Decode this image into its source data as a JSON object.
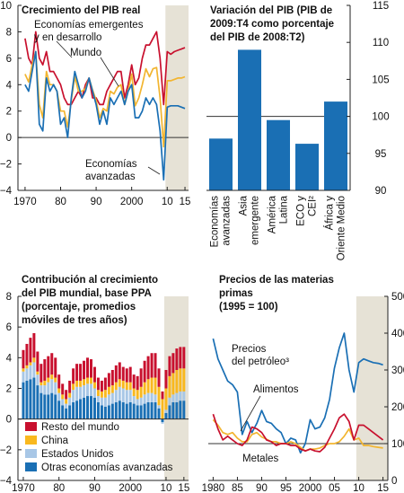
{
  "colors": {
    "em": "#c8102e",
    "world": "#f2b530",
    "adv": "#1a6fb4",
    "bar": "#1a6fb4",
    "shade": "#e6e2d6",
    "rest": "#c8102e",
    "china": "#f9b81e",
    "us": "#a8c7e6",
    "other": "#1a6fb4",
    "food": "#f2b530",
    "metals": "#c8102e",
    "oil": "#1a6fb4"
  },
  "chart_data": [
    {
      "type": "line",
      "title": [
        "Crecimiento del PIB real"
      ],
      "x": [
        1970,
        1971,
        1972,
        1973,
        1974,
        1975,
        1976,
        1977,
        1978,
        1979,
        1980,
        1981,
        1982,
        1983,
        1984,
        1985,
        1986,
        1987,
        1988,
        1989,
        1990,
        1991,
        1992,
        1993,
        1994,
        1995,
        1996,
        1997,
        1998,
        1999,
        2000,
        2001,
        2002,
        2003,
        2004,
        2005,
        2006,
        2007,
        2008,
        2009,
        2010,
        2011,
        2012,
        2013,
        2014,
        2015
      ],
      "xlim": [
        1968,
        2016
      ],
      "ylim": [
        -4,
        10
      ],
      "x_ticks": [
        1970,
        1980,
        1990,
        2000,
        2010,
        2015
      ],
      "x_tick_labels": [
        "1970",
        "80",
        "90",
        "2000",
        "10",
        "15"
      ],
      "y_ticks": [
        -4,
        -2,
        0,
        2,
        4,
        6,
        8,
        10
      ],
      "y_tick_labels": [
        "−4",
        "−2",
        "0",
        "2",
        "4",
        "6",
        "8",
        "10"
      ],
      "forecast_shade": [
        2009.5,
        2016
      ],
      "series": [
        {
          "name": "Economías emergentes y en desarrollo",
          "color_key": "em",
          "values": [
            7.5,
            6.0,
            5.5,
            8.0,
            6.0,
            5.5,
            6.5,
            5.0,
            5.0,
            4.5,
            4.0,
            3.0,
            2.5,
            2.5,
            3.0,
            3.5,
            3.0,
            4.0,
            4.5,
            3.0,
            3.0,
            2.5,
            2.5,
            3.5,
            4.0,
            4.5,
            5.0,
            5.0,
            3.0,
            4.0,
            5.5,
            4.0,
            4.5,
            6.0,
            7.0,
            7.0,
            7.5,
            8.0,
            6.0,
            2.5,
            6.5,
            6.3,
            6.5,
            6.6,
            6.7,
            6.8
          ]
        },
        {
          "name": "Mundo",
          "color_key": "world",
          "values": [
            4.8,
            4.2,
            5.5,
            6.5,
            2.5,
            1.5,
            5.0,
            4.0,
            4.0,
            3.5,
            2.0,
            2.0,
            0.8,
            2.8,
            4.6,
            3.5,
            3.5,
            3.7,
            4.5,
            3.6,
            2.8,
            1.5,
            2.2,
            2.0,
            3.5,
            3.3,
            3.8,
            4.0,
            2.5,
            3.5,
            4.8,
            2.4,
            3.0,
            4.0,
            5.2,
            4.6,
            5.2,
            5.3,
            3.0,
            -0.7,
            4.3,
            4.3,
            4.4,
            4.5,
            4.5,
            4.6
          ]
        },
        {
          "name": "Economías avanzadas",
          "color_key": "adv",
          "values": [
            4.0,
            3.5,
            5.0,
            6.5,
            1.0,
            0.5,
            4.5,
            3.5,
            4.0,
            3.5,
            1.0,
            1.5,
            0.0,
            3.0,
            5.0,
            4.0,
            3.0,
            3.5,
            4.5,
            3.5,
            2.5,
            1.0,
            2.0,
            1.0,
            3.0,
            2.5,
            3.0,
            3.5,
            2.5,
            3.5,
            4.0,
            1.5,
            1.5,
            2.0,
            3.0,
            2.5,
            3.0,
            2.5,
            0.5,
            -3.2,
            2.3,
            2.4,
            2.4,
            2.4,
            2.3,
            2.2
          ]
        }
      ],
      "annotations": [
        "Economías emergentes",
        "y en desarrollo",
        "Mundo",
        "Economías",
        "avanzadas"
      ]
    },
    {
      "type": "bar",
      "title": [
        "Variación del PIB (PIB de",
        "2009:T4 como porcentaje",
        "del PIB de 2008:T2)"
      ],
      "categories": [
        "Economías avanzadas",
        "Asia emergente",
        "América Latina",
        "ECO y CEI²",
        "África y Oriente Medio"
      ],
      "category_label_lines": [
        [
          "Economías",
          "avanzadas"
        ],
        [
          "Asia",
          "emergente"
        ],
        [
          "América",
          "Latina"
        ],
        [
          "ECO y",
          "CEI²"
        ],
        [
          "África y",
          "Oriente Medio"
        ]
      ],
      "values": [
        97.0,
        109.0,
        99.5,
        96.3,
        102.0
      ],
      "ylim": [
        90,
        115
      ],
      "baseline": 100,
      "y_ticks": [
        90,
        95,
        100,
        105,
        110,
        115
      ],
      "y_tick_labels": [
        "90",
        "95",
        "100",
        "105",
        "110",
        "115"
      ]
    },
    {
      "type": "bar",
      "stacked": true,
      "title": [
        "Contribución al crecimiento",
        "del PIB mundial, base PPA",
        "(porcentaje, promedios",
        "móviles de tres años)"
      ],
      "x": [
        1970,
        1971,
        1972,
        1973,
        1974,
        1975,
        1976,
        1977,
        1978,
        1979,
        1980,
        1981,
        1982,
        1983,
        1984,
        1985,
        1986,
        1987,
        1988,
        1989,
        1990,
        1991,
        1992,
        1993,
        1994,
        1995,
        1996,
        1997,
        1998,
        1999,
        2000,
        2001,
        2002,
        2003,
        2004,
        2005,
        2006,
        2007,
        2008,
        2009,
        2010,
        2011,
        2012,
        2013,
        2014,
        2015
      ],
      "xlim": [
        1968.5,
        2016.3
      ],
      "ylim": [
        -4,
        8
      ],
      "x_ticks": [
        1970,
        1980,
        1990,
        2000,
        2010,
        2015
      ],
      "x_tick_labels": [
        "1970",
        "80",
        "90",
        "2000",
        "10",
        "15"
      ],
      "y_ticks": [
        -4,
        -2,
        0,
        2,
        4,
        6,
        8
      ],
      "y_tick_labels": [
        "−4",
        "−2",
        "0",
        "2",
        "4",
        "6",
        "8"
      ],
      "forecast_shade": [
        2009.5,
        2016.3
      ],
      "series": [
        {
          "name": "Otras economías avanzadas",
          "color_key": "other",
          "values": [
            2.4,
            2.5,
            2.6,
            2.7,
            2.2,
            1.7,
            1.6,
            1.6,
            1.7,
            1.6,
            1.2,
            0.9,
            0.7,
            0.9,
            1.1,
            1.2,
            1.3,
            1.4,
            1.5,
            1.5,
            1.4,
            1.1,
            0.9,
            0.8,
            0.9,
            1.0,
            1.1,
            1.2,
            1.1,
            1.0,
            1.1,
            1.0,
            0.9,
            0.9,
            1.0,
            1.1,
            1.1,
            1.1,
            0.7,
            -0.2,
            0.4,
            0.9,
            1.1,
            1.1,
            1.2,
            1.2
          ]
        },
        {
          "name": "Estados Unidos",
          "color_key": "us",
          "values": [
            0.7,
            0.8,
            0.9,
            1.0,
            0.7,
            0.5,
            0.6,
            0.8,
            0.9,
            0.8,
            0.5,
            0.4,
            0.3,
            0.5,
            0.8,
            0.9,
            0.8,
            0.8,
            0.8,
            0.8,
            0.6,
            0.4,
            0.5,
            0.6,
            0.7,
            0.7,
            0.8,
            0.9,
            0.9,
            0.9,
            0.8,
            0.5,
            0.4,
            0.5,
            0.6,
            0.6,
            0.6,
            0.5,
            0.2,
            -0.1,
            0.2,
            0.5,
            0.5,
            0.6,
            0.6,
            0.6
          ]
        },
        {
          "name": "China",
          "color_key": "china",
          "values": [
            0.2,
            0.2,
            0.2,
            0.3,
            0.2,
            0.2,
            0.3,
            0.3,
            0.3,
            0.3,
            0.3,
            0.3,
            0.3,
            0.3,
            0.4,
            0.4,
            0.4,
            0.4,
            0.4,
            0.4,
            0.4,
            0.4,
            0.4,
            0.5,
            0.5,
            0.5,
            0.5,
            0.5,
            0.5,
            0.5,
            0.5,
            0.5,
            0.6,
            0.7,
            0.8,
            0.9,
            1.0,
            1.1,
            1.2,
            1.3,
            1.4,
            1.4,
            1.4,
            1.5,
            1.5,
            1.5
          ]
        },
        {
          "name": "Resto del mundo",
          "color_key": "rest",
          "values": [
            1.2,
            1.4,
            1.6,
            1.6,
            1.3,
            1.2,
            1.4,
            1.4,
            1.4,
            1.3,
            0.9,
            0.7,
            0.6,
            0.8,
            1.0,
            1.1,
            1.1,
            1.2,
            1.3,
            1.2,
            1.0,
            0.8,
            0.7,
            0.8,
            0.9,
            1.0,
            1.1,
            1.1,
            0.9,
            0.9,
            1.0,
            0.9,
            0.9,
            1.2,
            1.4,
            1.5,
            1.6,
            1.6,
            1.2,
            0.5,
            1.2,
            1.3,
            1.3,
            1.4,
            1.4,
            1.4
          ]
        }
      ],
      "legend": [
        "Resto del mundo",
        "China",
        "Estados Unidos",
        "Otras economías avanzadas"
      ],
      "legend_placement": "bottom-left"
    },
    {
      "type": "line",
      "title": [
        "Precios de las materias",
        "primas",
        "(1995 = 100)"
      ],
      "x": [
        1980,
        1981,
        1982,
        1983,
        1984,
        1985,
        1986,
        1987,
        1988,
        1989,
        1990,
        1991,
        1992,
        1993,
        1994,
        1995,
        1996,
        1997,
        1998,
        1999,
        2000,
        2001,
        2002,
        2003,
        2004,
        2005,
        2006,
        2007,
        2008,
        2009,
        2010,
        2011,
        2012,
        2013,
        2014,
        2015
      ],
      "xlim": [
        1979,
        2016
      ],
      "ylim": [
        0,
        500
      ],
      "x_ticks": [
        1980,
        1985,
        1990,
        1995,
        2000,
        2005,
        2010,
        2015
      ],
      "x_tick_labels": [
        "1980",
        "85",
        "90",
        "95",
        "2000",
        "05",
        "10",
        "15"
      ],
      "y_ticks": [
        0,
        100,
        200,
        300,
        400,
        500
      ],
      "y_tick_labels": [
        "0",
        "100",
        "200",
        "300",
        "400",
        "500"
      ],
      "baseline": 100,
      "forecast_shade": [
        2009.5,
        2016
      ],
      "series": [
        {
          "name": "Precios del petróleo³",
          "color_key": "oil",
          "values": [
            385,
            330,
            300,
            270,
            260,
            240,
            125,
            160,
            130,
            155,
            190,
            160,
            155,
            140,
            130,
            100,
            115,
            110,
            75,
            100,
            165,
            140,
            145,
            170,
            220,
            305,
            360,
            400,
            300,
            240,
            320,
            330,
            325,
            320,
            318,
            314
          ]
        },
        {
          "name": "Alimentos",
          "color_key": "food",
          "values": [
            165,
            150,
            130,
            125,
            130,
            115,
            105,
            105,
            125,
            130,
            118,
            112,
            105,
            105,
            100,
            100,
            105,
            100,
            90,
            80,
            85,
            85,
            88,
            95,
            100,
            100,
            105,
            120,
            140,
            110,
            115,
            95,
            95,
            92,
            90,
            88
          ]
        },
        {
          "name": "Metales",
          "color_key": "metals",
          "values": [
            180,
            140,
            110,
            120,
            110,
            100,
            95,
            110,
            145,
            140,
            130,
            110,
            105,
            95,
            100,
            100,
            95,
            95,
            85,
            80,
            85,
            80,
            78,
            90,
            115,
            140,
            170,
            180,
            160,
            110,
            150,
            150,
            140,
            130,
            120,
            110
          ]
        }
      ],
      "annotations": [
        "Precios",
        "del petróleo³",
        "Alimentos",
        "Metales"
      ]
    }
  ]
}
